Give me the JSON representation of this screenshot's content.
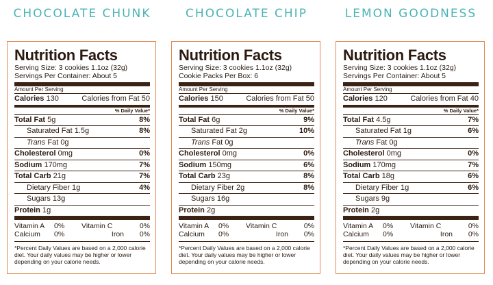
{
  "panels": [
    {
      "title": "CHOCOLATE CHUNK",
      "nf_title": "Nutrition Facts",
      "serving_size": "Serving Size: 3 cookies 1.1oz (32g)",
      "servings_container": "Servings Per Container: About 5",
      "amount_per_serving": "Amount Per Serving",
      "calories_label": "Calories",
      "calories": "130",
      "calories_fat": "Calories from Fat 50",
      "dv_header": "% Daily Value*",
      "total_fat_label": "Total Fat",
      "total_fat": "5g",
      "total_fat_dv": "8%",
      "sat_fat": "Saturated Fat 1.5g",
      "sat_fat_dv": "8%",
      "trans_label": "Trans",
      "trans_fat": " Fat 0g",
      "chol_label": "Cholesterol",
      "chol": "0mg",
      "chol_dv": "0%",
      "sodium_label": "Sodium",
      "sodium": "170mg",
      "sodium_dv": "7%",
      "carb_label": "Total Carb",
      "carb": "21g",
      "carb_dv": "7%",
      "fiber": "Dietary Fiber 1g",
      "fiber_dv": "4%",
      "sugars": "Sugars 13g",
      "protein_label": "Protein",
      "protein": "1g",
      "vit_a_label": "Vitamin A",
      "vit_a": "0%",
      "vit_c_label": "Vitamin C",
      "vit_c": "0%",
      "calcium_label": "Calcium",
      "calcium": "0%",
      "iron_label": "Iron",
      "iron": "0%",
      "footnote": "*Percent Daily Values are based on a 2,000 calorie diet. Your daily values may be higher or lower depending on your calorie needs."
    },
    {
      "title": "CHOCOLATE CHIP",
      "nf_title": "Nutrition Facts",
      "serving_size": "Serving Size: 3 cookies 1.1oz (32g)",
      "servings_container": "Cookie Packs Per Box: 6",
      "amount_per_serving": "Amount Per Serving",
      "calories_label": "Calories",
      "calories": "150",
      "calories_fat": "Calories from Fat 50",
      "dv_header": "% Daily Value*",
      "total_fat_label": "Total Fat",
      "total_fat": "6g",
      "total_fat_dv": "9%",
      "sat_fat": "Saturated Fat 2g",
      "sat_fat_dv": "10%",
      "trans_label": "Trans",
      "trans_fat": " Fat 0g",
      "chol_label": "Cholesterol",
      "chol": "0mg",
      "chol_dv": "0%",
      "sodium_label": "Sodium",
      "sodium": "150mg",
      "sodium_dv": "6%",
      "carb_label": "Total Carb",
      "carb": "23g",
      "carb_dv": "8%",
      "fiber": "Dietary Fiber 2g",
      "fiber_dv": "8%",
      "sugars": "Sugars 16g",
      "protein_label": "Protein",
      "protein": "2g",
      "vit_a_label": "Vitamin A",
      "vit_a": "0%",
      "vit_c_label": "Vitamin C",
      "vit_c": "0%",
      "calcium_label": "Calcium",
      "calcium": "0%",
      "iron_label": "Iron",
      "iron": "0%",
      "footnote": "*Percent Daily Values are based on a 2,000 calorie diet. Your daily values may be higher or lower depending on your calorie needs."
    },
    {
      "title": "LEMON GOODNESS",
      "nf_title": "Nutrition Facts",
      "serving_size": "Serving Size: 3 cookies 1.1oz (32g)",
      "servings_container": "Servings Per Container: About 5",
      "amount_per_serving": "Amount Per Serving",
      "calories_label": "Calories",
      "calories": "120",
      "calories_fat": "Calories from Fat 40",
      "dv_header": "% Daily Value*",
      "total_fat_label": "Total Fat",
      "total_fat": "4.5g",
      "total_fat_dv": "7%",
      "sat_fat": "Saturated Fat 1g",
      "sat_fat_dv": "6%",
      "trans_label": "Trans",
      "trans_fat": " Fat 0g",
      "chol_label": "Cholesterol",
      "chol": "0mg",
      "chol_dv": "0%",
      "sodium_label": "Sodium",
      "sodium": "170mg",
      "sodium_dv": "7%",
      "carb_label": "Total Carb",
      "carb": "18g",
      "carb_dv": "6%",
      "fiber": "Dietary Fiber 1g",
      "fiber_dv": "6%",
      "sugars": "Sugars 9g",
      "protein_label": "Protein",
      "protein": "2g",
      "vit_a_label": "Vitamin A",
      "vit_a": "0%",
      "vit_c_label": "Vitamin C",
      "vit_c": "0%",
      "calcium_label": "Calcium",
      "calcium": "0%",
      "iron_label": "Iron",
      "iron": "0%",
      "footnote": "*Percent Daily Values are based on a 2,000 calorie diet. Your daily values may be higher or lower depending on your calorie needs."
    }
  ],
  "colors": {
    "title": "#49b3b6",
    "border": "#e5884d",
    "text": "#2a1a10",
    "rule": "#3a2214"
  }
}
